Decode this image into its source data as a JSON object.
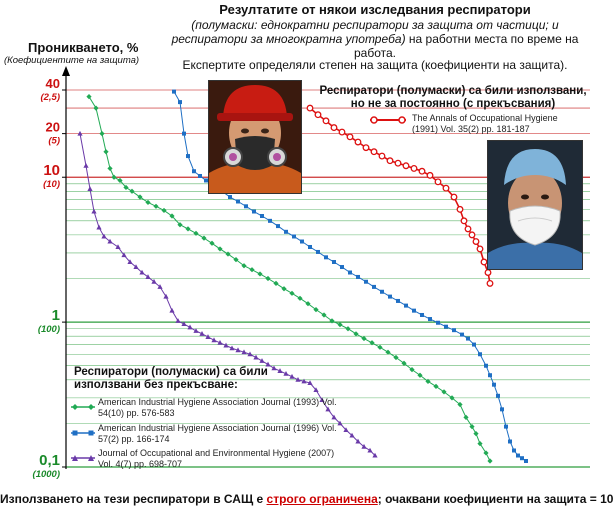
{
  "header": {
    "title": "Резултатите от някои изследвания респиратори",
    "subtitle_italic": "(полумаски: еднократни респиратори за защита от частици; и респиратори за многократна употреба)",
    "subtitle_rest": " на работни места по време на работа.",
    "subtitle_line2": "Експертите определяли степен на защита (коефициенти на защита)."
  },
  "axis": {
    "ylabel": "Проникването, %",
    "ylabel_sub": "(Коефициентите на защита)"
  },
  "legend_intermittent": {
    "title": "Респиратори (полумаски) са били използвани, но не за постоянно (с прекъсвания)",
    "source": "The Annals of Occupational Hygiene (1991) Vol. 35(2) pp. 181-187"
  },
  "legend_continuous": {
    "title": "Респиратори (полумаски) са били използвани без прекъсване:",
    "entries": [
      "American Industrial Hygiene Association Journal (1993) Vol. 54(10) pp. 576-583",
      "American Industrial Hygiene Association Journal (1996) Vol. 57(2) pp. 166-174",
      "Journal of Occupational and Environmental Hygiene (2007) Vol. 4(7) pp. 698-707"
    ]
  },
  "footer": {
    "before": "Използването на тези респиратори в САЩ е ",
    "underlined": "строго ограничена",
    "after": "; очаквани коефициенти на защита = 10"
  },
  "photos": {
    "left_icon": "worker-elastomeric-half-mask-photo",
    "right_icon": "worker-disposable-respirator-photo"
  },
  "chart_data": {
    "type": "line",
    "yscale": "log",
    "ylim": [
      0.1,
      40
    ],
    "yticks": [
      {
        "value": 40,
        "label": "40",
        "sublabel": "(2,5)"
      },
      {
        "value": 20,
        "label": "20",
        "sublabel": "(5)"
      },
      {
        "value": 10,
        "label": "10",
        "sublabel": "(10)"
      },
      {
        "value": 1,
        "label": "1",
        "sublabel": "(100)"
      },
      {
        "value": 0.1,
        "label": "0,1",
        "sublabel": "(1000)"
      }
    ],
    "colors": {
      "red": "#dd1111",
      "green": "#22aa55",
      "blue": "#1f6fc4",
      "purple": "#6a3aa8",
      "grid_green": "#2e9e3e",
      "grid_red": "#cc3333"
    },
    "series": [
      {
        "name": "The Annals of Occupational Hygiene (1991)",
        "color": "#dd1111",
        "marker": "circle",
        "points": [
          [
            310,
            30
          ],
          [
            318,
            27
          ],
          [
            326,
            24.5
          ],
          [
            334,
            22
          ],
          [
            342,
            20.5
          ],
          [
            350,
            19
          ],
          [
            358,
            17.5
          ],
          [
            366,
            16
          ],
          [
            374,
            15
          ],
          [
            382,
            14
          ],
          [
            390,
            13
          ],
          [
            398,
            12.5
          ],
          [
            406,
            12
          ],
          [
            414,
            11.5
          ],
          [
            422,
            11
          ],
          [
            430,
            10.3
          ],
          [
            438,
            9.3
          ],
          [
            446,
            8.4
          ],
          [
            454,
            7.3
          ],
          [
            460,
            6
          ],
          [
            464,
            5
          ],
          [
            468,
            4.4
          ],
          [
            472,
            4
          ],
          [
            476,
            3.6
          ],
          [
            480,
            3.2
          ],
          [
            484,
            2.6
          ],
          [
            488,
            2.2
          ],
          [
            490,
            1.85
          ]
        ]
      },
      {
        "name": "American Industrial Hygiene Association Journal (1993)",
        "color": "#22aa55",
        "marker": "diamond",
        "points": [
          [
            89,
            36
          ],
          [
            96,
            30
          ],
          [
            102,
            20
          ],
          [
            106,
            15
          ],
          [
            110,
            11.5
          ],
          [
            114,
            10
          ],
          [
            120,
            9.5
          ],
          [
            126,
            8.5
          ],
          [
            132,
            8
          ],
          [
            140,
            7.3
          ],
          [
            148,
            6.7
          ],
          [
            156,
            6.3
          ],
          [
            164,
            5.9
          ],
          [
            172,
            5.4
          ],
          [
            180,
            4.7
          ],
          [
            188,
            4.4
          ],
          [
            196,
            4.1
          ],
          [
            204,
            3.8
          ],
          [
            212,
            3.5
          ],
          [
            220,
            3.2
          ],
          [
            228,
            2.95
          ],
          [
            236,
            2.7
          ],
          [
            244,
            2.45
          ],
          [
            252,
            2.3
          ],
          [
            260,
            2.15
          ],
          [
            268,
            2
          ],
          [
            276,
            1.85
          ],
          [
            284,
            1.7
          ],
          [
            292,
            1.58
          ],
          [
            300,
            1.46
          ],
          [
            308,
            1.34
          ],
          [
            316,
            1.22
          ],
          [
            324,
            1.12
          ],
          [
            332,
            1.02
          ],
          [
            340,
            0.96
          ],
          [
            348,
            0.9
          ],
          [
            356,
            0.83
          ],
          [
            364,
            0.77
          ],
          [
            372,
            0.72
          ],
          [
            380,
            0.67
          ],
          [
            388,
            0.62
          ],
          [
            396,
            0.57
          ],
          [
            404,
            0.52
          ],
          [
            412,
            0.47
          ],
          [
            420,
            0.43
          ],
          [
            428,
            0.39
          ],
          [
            436,
            0.36
          ],
          [
            444,
            0.33
          ],
          [
            452,
            0.3
          ],
          [
            460,
            0.27
          ],
          [
            466,
            0.22
          ],
          [
            472,
            0.19
          ],
          [
            476,
            0.17
          ],
          [
            480,
            0.145
          ],
          [
            486,
            0.125
          ],
          [
            490,
            0.11
          ]
        ]
      },
      {
        "name": "American Industrial Hygiene Association Journal (1996)",
        "color": "#1f6fc4",
        "marker": "square",
        "points": [
          [
            174,
            39
          ],
          [
            180,
            33
          ],
          [
            184,
            20
          ],
          [
            188,
            14
          ],
          [
            194,
            11
          ],
          [
            200,
            10.2
          ],
          [
            206,
            9.5
          ],
          [
            214,
            8.8
          ],
          [
            222,
            8
          ],
          [
            230,
            7.3
          ],
          [
            238,
            6.8
          ],
          [
            246,
            6.3
          ],
          [
            254,
            5.8
          ],
          [
            262,
            5.4
          ],
          [
            270,
            5
          ],
          [
            278,
            4.6
          ],
          [
            286,
            4.2
          ],
          [
            294,
            3.9
          ],
          [
            302,
            3.6
          ],
          [
            310,
            3.3
          ],
          [
            318,
            3.05
          ],
          [
            326,
            2.8
          ],
          [
            334,
            2.6
          ],
          [
            342,
            2.4
          ],
          [
            350,
            2.2
          ],
          [
            358,
            2.05
          ],
          [
            366,
            1.9
          ],
          [
            374,
            1.75
          ],
          [
            382,
            1.62
          ],
          [
            390,
            1.5
          ],
          [
            398,
            1.4
          ],
          [
            406,
            1.3
          ],
          [
            414,
            1.2
          ],
          [
            422,
            1.12
          ],
          [
            430,
            1.05
          ],
          [
            438,
            0.99
          ],
          [
            446,
            0.93
          ],
          [
            454,
            0.88
          ],
          [
            462,
            0.82
          ],
          [
            468,
            0.77
          ],
          [
            474,
            0.7
          ],
          [
            480,
            0.6
          ],
          [
            486,
            0.5
          ],
          [
            490,
            0.43
          ],
          [
            494,
            0.37
          ],
          [
            498,
            0.31
          ],
          [
            502,
            0.25
          ],
          [
            506,
            0.19
          ],
          [
            510,
            0.15
          ],
          [
            514,
            0.13
          ],
          [
            518,
            0.12
          ],
          [
            522,
            0.115
          ],
          [
            526,
            0.11
          ]
        ]
      },
      {
        "name": "Journal of Occupational and Environmental Hygiene (2007)",
        "color": "#6a3aa8",
        "marker": "triangle",
        "points": [
          [
            80,
            20
          ],
          [
            86,
            12
          ],
          [
            90,
            8.3
          ],
          [
            94,
            5.8
          ],
          [
            99,
            4.5
          ],
          [
            104,
            3.9
          ],
          [
            110,
            3.6
          ],
          [
            118,
            3.3
          ],
          [
            124,
            2.9
          ],
          [
            130,
            2.6
          ],
          [
            136,
            2.4
          ],
          [
            142,
            2.2
          ],
          [
            148,
            2.05
          ],
          [
            154,
            1.9
          ],
          [
            160,
            1.75
          ],
          [
            166,
            1.5
          ],
          [
            172,
            1.2
          ],
          [
            178,
            1.02
          ],
          [
            184,
            0.97
          ],
          [
            190,
            0.92
          ],
          [
            196,
            0.87
          ],
          [
            202,
            0.83
          ],
          [
            208,
            0.79
          ],
          [
            214,
            0.75
          ],
          [
            220,
            0.72
          ],
          [
            226,
            0.69
          ],
          [
            232,
            0.66
          ],
          [
            238,
            0.64
          ],
          [
            244,
            0.62
          ],
          [
            250,
            0.6
          ],
          [
            256,
            0.57
          ],
          [
            262,
            0.54
          ],
          [
            268,
            0.51
          ],
          [
            274,
            0.48
          ],
          [
            280,
            0.46
          ],
          [
            286,
            0.44
          ],
          [
            292,
            0.42
          ],
          [
            298,
            0.4
          ],
          [
            304,
            0.39
          ],
          [
            310,
            0.38
          ],
          [
            316,
            0.34
          ],
          [
            322,
            0.29
          ],
          [
            328,
            0.25
          ],
          [
            334,
            0.22
          ],
          [
            340,
            0.2
          ],
          [
            346,
            0.18
          ],
          [
            352,
            0.165
          ],
          [
            358,
            0.15
          ],
          [
            364,
            0.138
          ],
          [
            370,
            0.13
          ],
          [
            375,
            0.12
          ]
        ]
      }
    ]
  }
}
